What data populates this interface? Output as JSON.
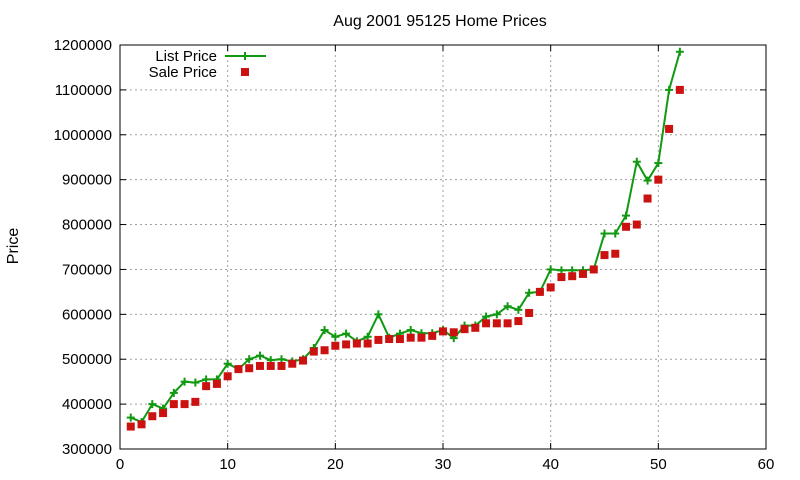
{
  "chart_data": {
    "type": "line",
    "title": "Aug 2001 95125 Home Prices",
    "ylabel": "Price",
    "xlabel": "",
    "xlim": [
      0,
      60
    ],
    "ylim": [
      300000,
      1200000
    ],
    "x_ticks": [
      0,
      10,
      20,
      30,
      40,
      50,
      60
    ],
    "y_ticks": [
      300000,
      400000,
      500000,
      600000,
      700000,
      800000,
      900000,
      1000000,
      1100000,
      1200000
    ],
    "grid": true,
    "legend_position": "top-left",
    "series": [
      {
        "name": "List Price",
        "style": "line-with-plus-markers",
        "color": "#119911",
        "x": [
          1,
          2,
          3,
          4,
          5,
          6,
          7,
          8,
          9,
          10,
          11,
          12,
          13,
          14,
          15,
          16,
          17,
          18,
          19,
          20,
          21,
          22,
          23,
          24,
          25,
          26,
          27,
          28,
          29,
          30,
          31,
          32,
          33,
          34,
          35,
          36,
          37,
          38,
          39,
          40,
          41,
          42,
          43,
          44,
          45,
          46,
          47,
          48,
          49,
          50,
          51,
          52
        ],
        "y": [
          370000,
          360000,
          400000,
          390000,
          425000,
          450000,
          448000,
          455000,
          455000,
          490000,
          478000,
          500000,
          508000,
          498000,
          500000,
          495000,
          500000,
          525000,
          565000,
          550000,
          557000,
          540000,
          550000,
          600000,
          548000,
          557000,
          565000,
          558000,
          558000,
          565000,
          547000,
          575000,
          575000,
          595000,
          600000,
          618000,
          610000,
          648000,
          650000,
          700000,
          698000,
          698000,
          698000,
          700000,
          780000,
          780000,
          820000,
          940000,
          898000,
          937000,
          1100000,
          1185000
        ]
      },
      {
        "name": "Sale Price",
        "style": "square-markers",
        "color": "#cc1111",
        "x": [
          1,
          2,
          3,
          4,
          5,
          6,
          7,
          8,
          9,
          10,
          11,
          12,
          13,
          14,
          15,
          16,
          17,
          18,
          19,
          20,
          21,
          22,
          23,
          24,
          25,
          26,
          27,
          28,
          29,
          30,
          31,
          32,
          33,
          34,
          35,
          36,
          37,
          38,
          39,
          40,
          41,
          42,
          43,
          44,
          45,
          46,
          47,
          48,
          49,
          50,
          51,
          52
        ],
        "y": [
          350000,
          355000,
          373000,
          380000,
          400000,
          400000,
          405000,
          440000,
          445000,
          462000,
          478000,
          480000,
          485000,
          485000,
          485000,
          490000,
          497000,
          517000,
          520000,
          530000,
          533000,
          535000,
          535000,
          543000,
          545000,
          545000,
          548000,
          548000,
          552000,
          562000,
          560000,
          567000,
          570000,
          580000,
          580000,
          580000,
          585000,
          603000,
          650000,
          660000,
          683000,
          685000,
          690000,
          700000,
          732000,
          735000,
          795000,
          800000,
          858000,
          900000,
          1013000,
          1100000
        ]
      }
    ]
  }
}
